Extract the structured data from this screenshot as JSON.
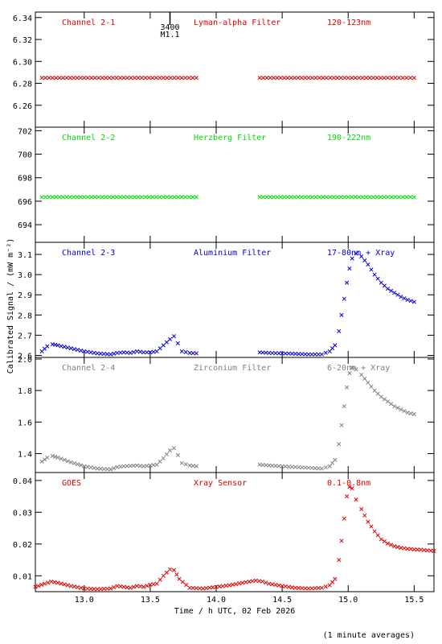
{
  "chart_data": [
    {
      "type": "scatter",
      "panel": "Channel 2-1",
      "labels": [
        "Channel 2-1",
        "Lyman-alpha Filter",
        "120-123nm"
      ],
      "color": "#e00000",
      "ylim": [
        6.24,
        6.345
      ],
      "yticks": [
        6.26,
        6.28,
        6.3,
        6.32,
        6.34
      ],
      "ytick_labels": [
        "6.26",
        "6.28",
        "6.30",
        "6.32",
        "6.34"
      ],
      "marker": {
        "x": 13.65,
        "labels": [
          "3400",
          "M1.1"
        ]
      },
      "series": [
        {
          "segments": [
            [
              [
                12.68,
                6.285
              ],
              [
                13.0,
                6.285
              ],
              [
                13.3,
                6.285
              ],
              [
                13.6,
                6.285
              ],
              [
                13.85,
                6.285
              ]
            ],
            [
              [
                14.33,
                6.285
              ],
              [
                14.7,
                6.285
              ],
              [
                15.0,
                6.285
              ],
              [
                15.3,
                6.285
              ],
              [
                15.5,
                6.285
              ]
            ]
          ]
        }
      ]
    },
    {
      "type": "scatter",
      "panel": "Channel 2-2",
      "labels": [
        "Channel 2-2",
        "Herzberg Filter",
        "190-222nm"
      ],
      "color": "#00dd00",
      "ylim": [
        692.5,
        702.3
      ],
      "yticks": [
        694,
        696,
        698,
        700,
        702
      ],
      "ytick_labels": [
        "694",
        "696",
        "698",
        "700",
        "702"
      ],
      "series": [
        {
          "segments": [
            [
              [
                12.68,
                696.35
              ],
              [
                13.0,
                696.35
              ],
              [
                13.3,
                696.35
              ],
              [
                13.6,
                696.35
              ],
              [
                13.85,
                696.35
              ]
            ],
            [
              [
                14.33,
                696.35
              ],
              [
                14.7,
                696.35
              ],
              [
                15.0,
                696.35
              ],
              [
                15.3,
                696.35
              ],
              [
                15.5,
                696.35
              ]
            ]
          ]
        }
      ]
    },
    {
      "type": "scatter",
      "panel": "Channel 2-3",
      "labels": [
        "Channel 2-3",
        "Aluminium Filter",
        "17-80nm + Xray"
      ],
      "color": "#0000dd",
      "ylim": [
        2.59,
        3.16
      ],
      "yticks": [
        2.6,
        2.7,
        2.8,
        2.9,
        3.0,
        3.1
      ],
      "ytick_labels": [
        "2.6",
        "2.7",
        "2.8",
        "2.9",
        "3.0",
        "3.1"
      ],
      "ylabel": "Calibrated Signal / (mW m⁻²)",
      "series": [
        {
          "segments": [
            [
              [
                12.68,
                2.62
              ],
              [
                12.72,
                2.645
              ],
              [
                12.76,
                2.655
              ],
              [
                12.8,
                2.65
              ],
              [
                12.9,
                2.635
              ],
              [
                13.0,
                2.62
              ],
              [
                13.1,
                2.61
              ],
              [
                13.2,
                2.605
              ],
              [
                13.25,
                2.612
              ],
              [
                13.3,
                2.615
              ],
              [
                13.35,
                2.612
              ],
              [
                13.4,
                2.62
              ],
              [
                13.45,
                2.615
              ],
              [
                13.5,
                2.615
              ],
              [
                13.55,
                2.62
              ],
              [
                13.6,
                2.65
              ],
              [
                13.65,
                2.68
              ],
              [
                13.68,
                2.695
              ],
              [
                13.71,
                2.66
              ],
              [
                13.74,
                2.62
              ],
              [
                13.8,
                2.612
              ],
              [
                13.85,
                2.61
              ]
            ],
            [
              [
                14.33,
                2.615
              ],
              [
                14.4,
                2.612
              ],
              [
                14.5,
                2.61
              ],
              [
                14.6,
                2.608
              ],
              [
                14.7,
                2.605
              ],
              [
                14.8,
                2.605
              ],
              [
                14.86,
                2.62
              ],
              [
                14.9,
                2.65
              ],
              [
                14.93,
                2.72
              ],
              [
                14.95,
                2.8
              ],
              [
                14.97,
                2.88
              ],
              [
                14.99,
                2.96
              ],
              [
                15.01,
                3.03
              ],
              [
                15.03,
                3.08
              ],
              [
                15.06,
                3.105
              ],
              [
                15.1,
                3.09
              ],
              [
                15.15,
                3.05
              ],
              [
                15.2,
                3.0
              ],
              [
                15.25,
                2.96
              ],
              [
                15.3,
                2.93
              ],
              [
                15.35,
                2.91
              ],
              [
                15.4,
                2.89
              ],
              [
                15.45,
                2.875
              ],
              [
                15.5,
                2.865
              ]
            ]
          ]
        }
      ]
    },
    {
      "type": "scatter",
      "panel": "Channel 2-4",
      "labels": [
        "Channel 2-4",
        "Zirconium Filter",
        "6-20nm + Xray"
      ],
      "color": "#808080",
      "ylim": [
        1.28,
        2.01
      ],
      "yticks": [
        1.4,
        1.6,
        1.8,
        2.0
      ],
      "ytick_labels": [
        "1.4",
        "1.6",
        "1.8",
        "2.0"
      ],
      "series": [
        {
          "segments": [
            [
              [
                12.68,
                1.35
              ],
              [
                12.72,
                1.375
              ],
              [
                12.76,
                1.385
              ],
              [
                12.8,
                1.375
              ],
              [
                12.9,
                1.345
              ],
              [
                13.0,
                1.32
              ],
              [
                13.1,
                1.305
              ],
              [
                13.2,
                1.3
              ],
              [
                13.25,
                1.315
              ],
              [
                13.3,
                1.32
              ],
              [
                13.4,
                1.325
              ],
              [
                13.45,
                1.32
              ],
              [
                13.5,
                1.325
              ],
              [
                13.55,
                1.33
              ],
              [
                13.6,
                1.37
              ],
              [
                13.65,
                1.42
              ],
              [
                13.68,
                1.435
              ],
              [
                13.71,
                1.39
              ],
              [
                13.74,
                1.34
              ],
              [
                13.8,
                1.325
              ],
              [
                13.85,
                1.32
              ]
            ],
            [
              [
                14.33,
                1.33
              ],
              [
                14.4,
                1.325
              ],
              [
                14.5,
                1.32
              ],
              [
                14.6,
                1.315
              ],
              [
                14.7,
                1.31
              ],
              [
                14.8,
                1.305
              ],
              [
                14.86,
                1.32
              ],
              [
                14.9,
                1.36
              ],
              [
                14.93,
                1.46
              ],
              [
                14.95,
                1.58
              ],
              [
                14.97,
                1.7
              ],
              [
                14.99,
                1.82
              ],
              [
                15.01,
                1.91
              ],
              [
                15.03,
                1.945
              ],
              [
                15.06,
                1.935
              ],
              [
                15.1,
                1.9
              ],
              [
                15.15,
                1.85
              ],
              [
                15.2,
                1.8
              ],
              [
                15.25,
                1.76
              ],
              [
                15.3,
                1.73
              ],
              [
                15.35,
                1.7
              ],
              [
                15.4,
                1.68
              ],
              [
                15.45,
                1.66
              ],
              [
                15.5,
                1.65
              ]
            ]
          ]
        }
      ]
    },
    {
      "type": "scatter",
      "panel": "GOES",
      "labels": [
        "GOES",
        "Xray Sensor",
        "0.1-0.8nm"
      ],
      "color": "#e00000",
      "ylim": [
        0.005,
        0.0425
      ],
      "yticks": [
        0.01,
        0.02,
        0.03,
        0.04
      ],
      "ytick_labels": [
        "0.01",
        "0.02",
        "0.03",
        "0.04"
      ],
      "xlim": [
        12.63,
        15.65
      ],
      "xticks": [
        13.0,
        13.5,
        14.0,
        14.5,
        15.0,
        15.5
      ],
      "xtick_labels": [
        "13.0",
        "13.5",
        "14.0",
        "14.5",
        "15.0",
        "15.5"
      ],
      "xlabel": "Time / h UTC, 02 Feb 2026",
      "series": [
        {
          "segments": [
            [
              [
                12.63,
                0.0065
              ],
              [
                12.7,
                0.0075
              ],
              [
                12.75,
                0.0082
              ],
              [
                12.8,
                0.0078
              ],
              [
                12.9,
                0.0068
              ],
              [
                13.0,
                0.006
              ],
              [
                13.1,
                0.0058
              ],
              [
                13.2,
                0.006
              ],
              [
                13.25,
                0.0068
              ],
              [
                13.3,
                0.0065
              ],
              [
                13.35,
                0.0062
              ],
              [
                13.4,
                0.0068
              ],
              [
                13.45,
                0.0065
              ],
              [
                13.5,
                0.0072
              ],
              [
                13.55,
                0.0075
              ],
              [
                13.6,
                0.01
              ],
              [
                13.65,
                0.012
              ],
              [
                13.68,
                0.0118
              ],
              [
                13.72,
                0.009
              ],
              [
                13.8,
                0.0062
              ],
              [
                13.9,
                0.006
              ],
              [
                14.0,
                0.0065
              ],
              [
                14.1,
                0.007
              ],
              [
                14.2,
                0.0078
              ],
              [
                14.3,
                0.0085
              ],
              [
                14.35,
                0.0082
              ],
              [
                14.4,
                0.0075
              ],
              [
                14.5,
                0.0068
              ],
              [
                14.6,
                0.0062
              ],
              [
                14.7,
                0.006
              ],
              [
                14.8,
                0.0062
              ],
              [
                14.86,
                0.007
              ],
              [
                14.9,
                0.009
              ],
              [
                14.93,
                0.015
              ],
              [
                14.95,
                0.021
              ],
              [
                14.97,
                0.028
              ],
              [
                14.99,
                0.035
              ],
              [
                15.01,
                0.038
              ],
              [
                15.03,
                0.0375
              ],
              [
                15.06,
                0.034
              ],
              [
                15.1,
                0.031
              ],
              [
                15.15,
                0.027
              ],
              [
                15.2,
                0.024
              ],
              [
                15.25,
                0.0215
              ],
              [
                15.3,
                0.0202
              ],
              [
                15.35,
                0.0193
              ],
              [
                15.4,
                0.0188
              ],
              [
                15.45,
                0.0185
              ],
              [
                15.5,
                0.0183
              ],
              [
                15.55,
                0.0182
              ],
              [
                15.6,
                0.018
              ],
              [
                15.65,
                0.0178
              ]
            ]
          ]
        }
      ]
    }
  ],
  "footer_note": "(1 minute averages)"
}
